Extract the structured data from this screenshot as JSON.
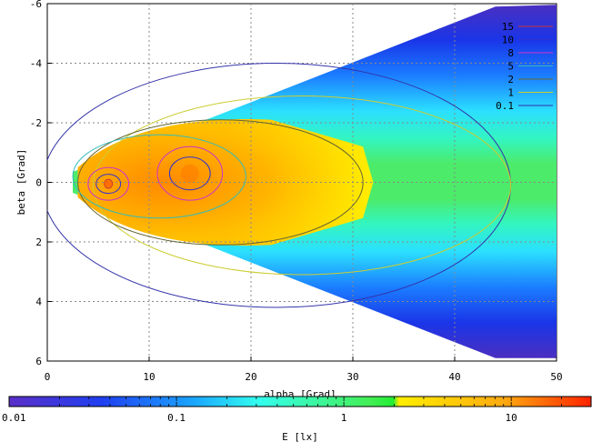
{
  "chart_data": {
    "type": "heatmap",
    "xlabel": "alpha [Grad]",
    "ylabel": "beta [Grad]",
    "xlim": [
      0,
      50
    ],
    "ylim": [
      -6,
      6
    ],
    "y_axis_inverted": true,
    "grid": true,
    "x_ticks": [
      "0",
      "10",
      "20",
      "30",
      "40",
      "50"
    ],
    "x_tick_values": [
      0,
      10,
      20,
      30,
      40,
      50
    ],
    "y_ticks": [
      "-6",
      "-4",
      "-2",
      "0",
      "2",
      "4",
      "6"
    ],
    "y_tick_values": [
      -6,
      -4,
      -2,
      0,
      2,
      4,
      6
    ],
    "colorbar": {
      "label": "E [lx]",
      "scale": "log",
      "range": [
        0.01,
        30
      ],
      "tick_labels": [
        "0.01",
        "0.1",
        "1",
        "10"
      ],
      "tick_values": [
        0.01,
        0.1,
        1,
        10
      ]
    },
    "contour_levels": [
      "15",
      "10",
      "8",
      "5",
      "2",
      "1",
      "0.1"
    ],
    "contour_colors": [
      "#cc3333",
      "#3333cc",
      "#cc33cc",
      "#33bbbb",
      "#666633",
      "#cccc33",
      "#3333aa"
    ],
    "legend_position": "top-right",
    "illuminated_region": {
      "apex_alpha": 2.5,
      "apex_half_width_beta": 0.35,
      "edge_alpha": 44,
      "edge_half_width_beta": 5.9
    },
    "bright_core": {
      "alpha_range": [
        3,
        32
      ],
      "beta_range": [
        -2.1,
        2.1
      ],
      "E_approx": 10
    },
    "peak": {
      "alpha": 6,
      "beta": 0.05,
      "E_approx": 15
    },
    "secondary_peak": {
      "alpha": 14,
      "beta": -0.3,
      "E_approx": 12
    }
  }
}
